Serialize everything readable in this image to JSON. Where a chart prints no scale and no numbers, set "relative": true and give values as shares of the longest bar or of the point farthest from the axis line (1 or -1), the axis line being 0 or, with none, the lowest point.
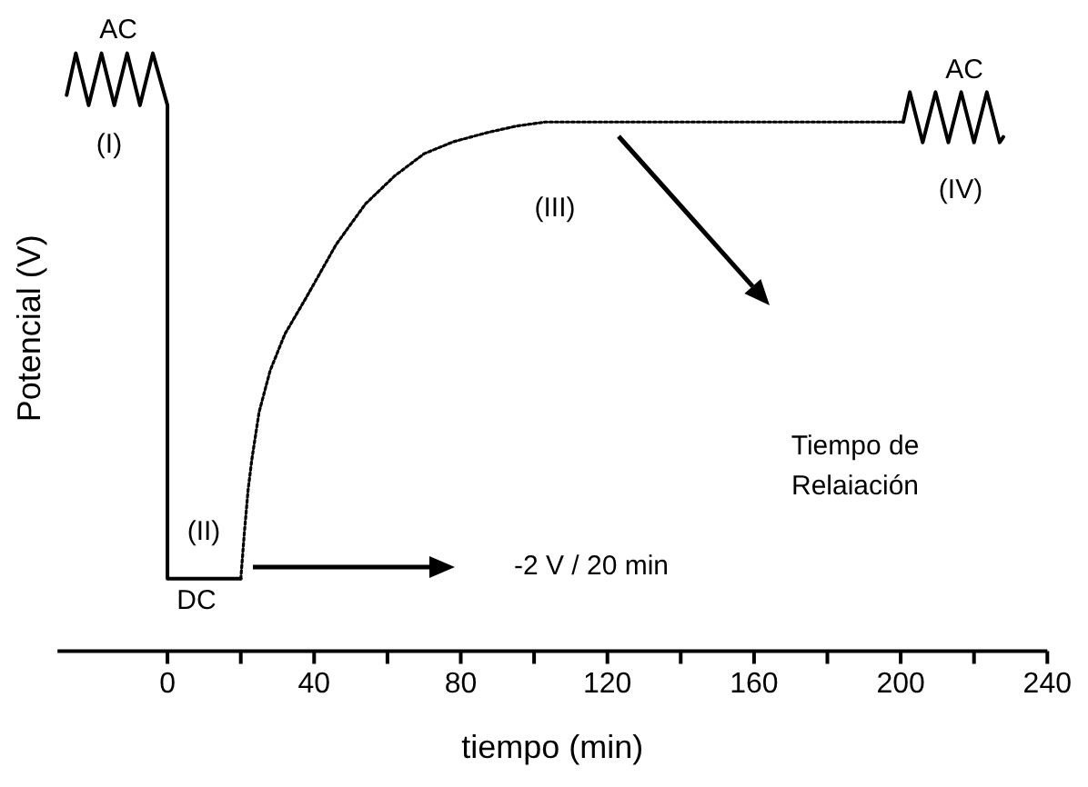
{
  "chart_data": {
    "type": "line",
    "relative": true,
    "xlabel": "tiempo (min)",
    "ylabel": "Potencial (V)",
    "xlim": [
      -30,
      240
    ],
    "xticks": [
      0,
      {
        "value": 20,
        "label": null
      },
      40,
      {
        "value": 60,
        "label": null
      },
      80,
      {
        "value": 100,
        "label": null
      },
      120,
      {
        "value": 140,
        "label": null
      },
      160,
      {
        "value": 180,
        "label": null
      },
      200,
      {
        "value": 220,
        "label": null
      },
      240
    ],
    "tick_labels": "x",
    "grid": false,
    "legend": false,
    "marker": "none",
    "series": [
      {
        "line_style": "solid",
        "color": "#000000",
        "x": [
          -27.5,
          -25,
          -21.5,
          -18,
          -14.5,
          -11,
          -7.5,
          -4,
          0,
          0,
          20
        ],
        "values": [
          0.93,
          1.0,
          0.913,
          1.0,
          0.913,
          1.0,
          0.913,
          1.0,
          0.913,
          0.121,
          0.121
        ]
      },
      {
        "line_style": "dotted",
        "color": "#000000",
        "x": [
          20,
          21,
          22,
          23,
          25,
          28,
          32,
          38,
          46,
          54,
          62,
          70,
          78,
          87,
          95,
          103,
          200.7
        ],
        "values": [
          0.121,
          0.2,
          0.27,
          0.32,
          0.4,
          0.469,
          0.53,
          0.593,
          0.68,
          0.748,
          0.795,
          0.832,
          0.852,
          0.867,
          0.878,
          0.885,
          0.885
        ]
      },
      {
        "line_style": "solid",
        "color": "#000000",
        "x": [
          200.7,
          202.5,
          206,
          209.5,
          213,
          216.5,
          220,
          223.5,
          227,
          228
        ],
        "values": [
          0.885,
          0.935,
          0.851,
          0.935,
          0.851,
          0.935,
          0.851,
          0.935,
          0.851,
          0.86
        ]
      }
    ],
    "annotations": [
      "AC",
      "(I)",
      "(II)",
      "DC",
      "(III)",
      "AC",
      "(IV)",
      "-2 V / 20 min",
      "Tiempo de Relaiación"
    ]
  }
}
